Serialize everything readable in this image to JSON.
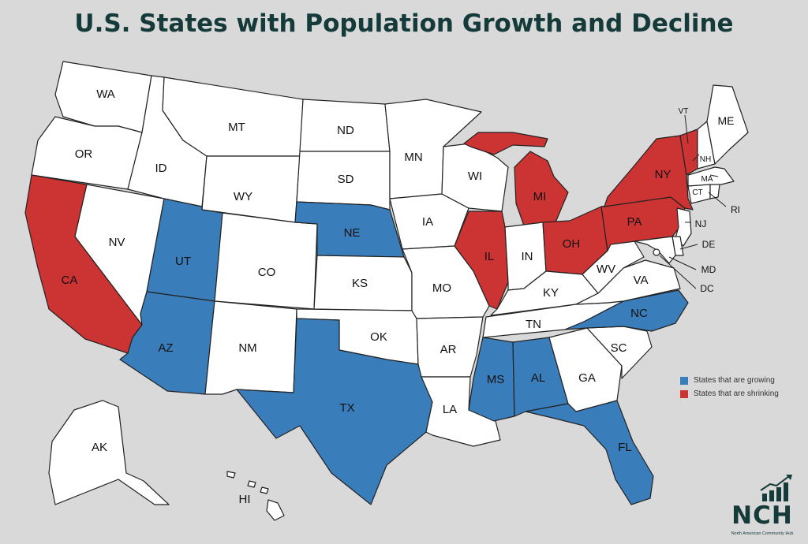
{
  "title": "U.S. States with Population Growth and Decline",
  "colors": {
    "growing": "#3a7dbb",
    "shrinking": "#cc3333",
    "neutral": "#ffffff",
    "background": "#d9d9d9",
    "title": "#143a3a"
  },
  "legend": [
    {
      "status": "growing",
      "label": "States that are growing"
    },
    {
      "status": "shrinking",
      "label": "States that are shrinking"
    }
  ],
  "states": [
    {
      "code": "WA",
      "status": "neutral"
    },
    {
      "code": "OR",
      "status": "neutral"
    },
    {
      "code": "CA",
      "status": "shrinking"
    },
    {
      "code": "NV",
      "status": "neutral"
    },
    {
      "code": "ID",
      "status": "neutral"
    },
    {
      "code": "MT",
      "status": "neutral"
    },
    {
      "code": "WY",
      "status": "neutral"
    },
    {
      "code": "UT",
      "status": "growing"
    },
    {
      "code": "AZ",
      "status": "growing"
    },
    {
      "code": "CO",
      "status": "neutral"
    },
    {
      "code": "NM",
      "status": "neutral"
    },
    {
      "code": "ND",
      "status": "neutral"
    },
    {
      "code": "SD",
      "status": "neutral"
    },
    {
      "code": "NE",
      "status": "growing"
    },
    {
      "code": "KS",
      "status": "neutral"
    },
    {
      "code": "OK",
      "status": "neutral"
    },
    {
      "code": "TX",
      "status": "growing"
    },
    {
      "code": "MN",
      "status": "neutral"
    },
    {
      "code": "IA",
      "status": "neutral"
    },
    {
      "code": "MO",
      "status": "neutral"
    },
    {
      "code": "AR",
      "status": "neutral"
    },
    {
      "code": "LA",
      "status": "neutral"
    },
    {
      "code": "WI",
      "status": "neutral"
    },
    {
      "code": "IL",
      "status": "shrinking"
    },
    {
      "code": "MI",
      "status": "shrinking"
    },
    {
      "code": "IN",
      "status": "neutral"
    },
    {
      "code": "OH",
      "status": "shrinking"
    },
    {
      "code": "KY",
      "status": "neutral"
    },
    {
      "code": "TN",
      "status": "neutral"
    },
    {
      "code": "MS",
      "status": "growing"
    },
    {
      "code": "AL",
      "status": "growing"
    },
    {
      "code": "GA",
      "status": "neutral"
    },
    {
      "code": "FL",
      "status": "growing"
    },
    {
      "code": "SC",
      "status": "neutral"
    },
    {
      "code": "NC",
      "status": "growing"
    },
    {
      "code": "VA",
      "status": "neutral"
    },
    {
      "code": "WV",
      "status": "neutral"
    },
    {
      "code": "PA",
      "status": "shrinking"
    },
    {
      "code": "NY",
      "status": "shrinking"
    },
    {
      "code": "VT",
      "status": "shrinking"
    },
    {
      "code": "NH",
      "status": "neutral"
    },
    {
      "code": "ME",
      "status": "neutral"
    },
    {
      "code": "MA",
      "status": "neutral"
    },
    {
      "code": "CT",
      "status": "neutral"
    },
    {
      "code": "RI",
      "status": "neutral"
    },
    {
      "code": "NJ",
      "status": "neutral"
    },
    {
      "code": "DE",
      "status": "neutral"
    },
    {
      "code": "MD",
      "status": "neutral"
    },
    {
      "code": "DC",
      "status": "neutral"
    },
    {
      "code": "AK",
      "status": "neutral"
    },
    {
      "code": "HI",
      "status": "neutral"
    }
  ],
  "logo": {
    "text": "NCH",
    "subtitle": "North American Community Hub"
  }
}
